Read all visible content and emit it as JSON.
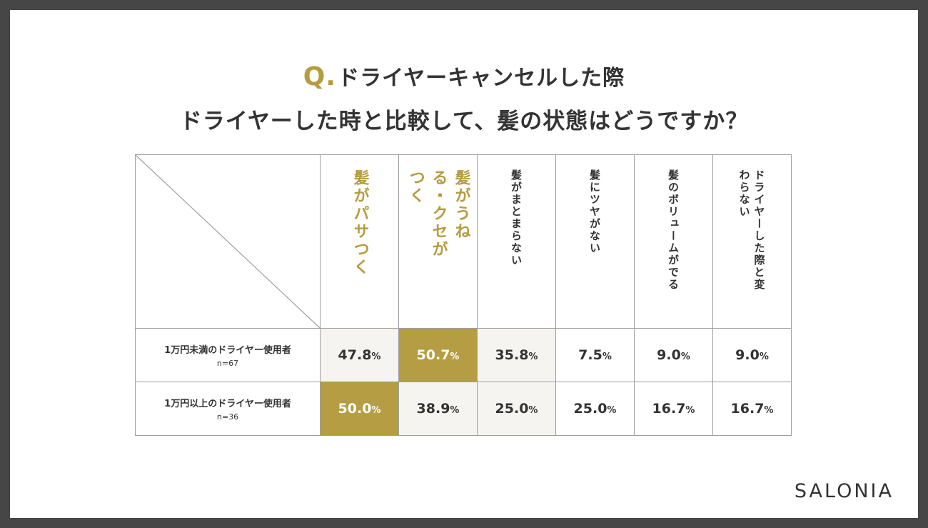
{
  "title": {
    "q_mark": "Q.",
    "line1": "ドライヤーキャンセルした際",
    "line2": "ドライヤーした時と比較して、髪の状態はどうですか？"
  },
  "brand": "SALONIA",
  "chart_data": {
    "type": "table",
    "columns": [
      "髪がパサつく",
      "髪がうねる・クセがつく",
      "髪がまとまらない",
      "髪にツヤがない",
      "髪のボリュームがでる",
      "ドライヤーした際と変わらない"
    ],
    "rows": [
      {
        "label": "1万円未満のドライヤー使用者",
        "n": "n=67",
        "values": [
          47.8,
          50.7,
          35.8,
          7.5,
          9.0,
          9.0
        ],
        "highlight_index": 1
      },
      {
        "label": "1万円以上のドライヤー使用者",
        "n": "n=36",
        "values": [
          50.0,
          38.9,
          25.0,
          25.0,
          16.7,
          16.7
        ],
        "highlight_index": 0
      }
    ],
    "unit": "%",
    "colors": {
      "accent": "#b49d42",
      "light": "#f5f4f0",
      "text": "#333333",
      "frame": "#474646"
    }
  }
}
